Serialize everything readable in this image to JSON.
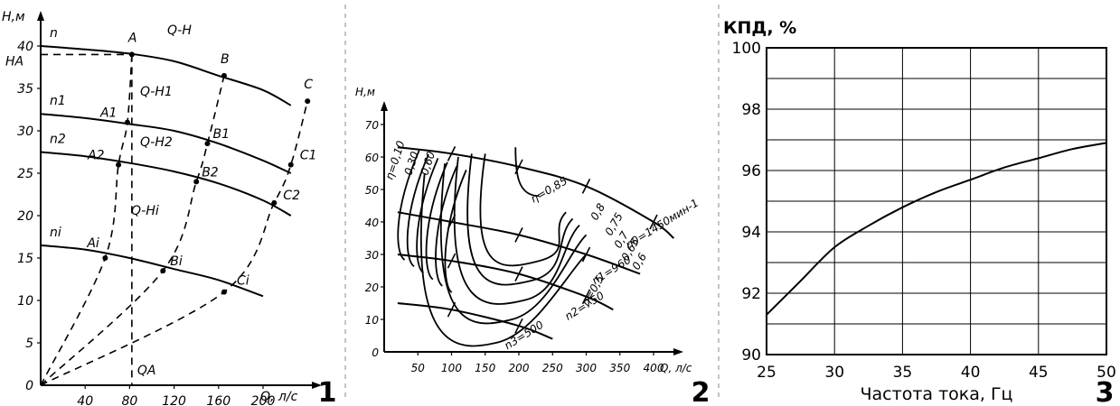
{
  "panel_numbers": [
    "1",
    "2",
    "3"
  ],
  "chart_data": [
    {
      "type": "line",
      "panel": "1",
      "ylabel": "H,м",
      "xlabel": "Q, л/с",
      "x_ticks": [
        "40",
        "80",
        "120",
        "160",
        "200"
      ],
      "y_ticks": [
        "0",
        "5",
        "10",
        "15",
        "20",
        "25",
        "30",
        "35",
        "40"
      ],
      "xlim": [
        0,
        245
      ],
      "ylim": [
        0,
        42
      ],
      "grid": false,
      "series": [
        {
          "name": "n",
          "curve_label": "Q-H",
          "style": "solid",
          "x": [
            0,
            40,
            80,
            120,
            160,
            200,
            225
          ],
          "y": [
            40.0,
            39.6,
            39.1,
            38.2,
            36.5,
            34.8,
            33.0
          ]
        },
        {
          "name": "n1",
          "curve_label": "Q-H1",
          "style": "solid",
          "x": [
            0,
            40,
            80,
            120,
            160,
            200,
            225
          ],
          "y": [
            32.0,
            31.5,
            30.8,
            30.0,
            28.5,
            26.5,
            25.0
          ]
        },
        {
          "name": "n2",
          "curve_label": "Q-H2",
          "style": "solid",
          "x": [
            0,
            40,
            80,
            120,
            160,
            200,
            225
          ],
          "y": [
            27.5,
            27.0,
            26.2,
            25.2,
            23.8,
            21.8,
            20.0
          ]
        },
        {
          "name": "ni",
          "curve_label": "Q-Hi",
          "style": "solid",
          "x": [
            0,
            40,
            80,
            120,
            160,
            200
          ],
          "y": [
            16.5,
            16.0,
            15.0,
            13.7,
            12.4,
            10.5
          ]
        }
      ],
      "similarity_parabolas": [
        {
          "points": [
            "A",
            "A1",
            "A2",
            "Ai"
          ],
          "x": [
            0,
            58,
            70,
            78,
            82
          ],
          "y": [
            0,
            15,
            26,
            31,
            39
          ]
        },
        {
          "points": [
            "B",
            "B1",
            "B2",
            "Bi"
          ],
          "x": [
            0,
            110,
            140,
            150,
            165
          ],
          "y": [
            0,
            13.5,
            24,
            28.5,
            36.5
          ]
        },
        {
          "points": [
            "C",
            "C1",
            "C2",
            "Ci"
          ],
          "x": [
            0,
            165,
            210,
            225,
            240
          ],
          "y": [
            0,
            11,
            21.5,
            26,
            33.5
          ]
        }
      ],
      "point_labels": [
        "A",
        "B",
        "C",
        "A1",
        "B1",
        "C1",
        "A2",
        "B2",
        "C2",
        "Ai",
        "Bi",
        "Ci"
      ],
      "annotations": [
        "HA",
        "QA"
      ],
      "operating_point": {
        "label": "A",
        "Q": 82,
        "H": 39
      }
    },
    {
      "type": "line",
      "panel": "2",
      "ylabel": "H,м",
      "xlabel": "Q, л/с",
      "x_ticks": [
        "50",
        "100",
        "150",
        "200",
        "250",
        "300",
        "350",
        "400"
      ],
      "y_ticks": [
        "0",
        "10",
        "20",
        "30",
        "40",
        "50",
        "60",
        "70"
      ],
      "xlim": [
        0,
        440
      ],
      "ylim": [
        0,
        75
      ],
      "grid": false,
      "speed_curves": [
        {
          "name": "n0=1450мин-1",
          "x": [
            20,
            100,
            200,
            300,
            400,
            430
          ],
          "y": [
            63,
            61,
            57,
            51,
            40,
            35
          ]
        },
        {
          "name": "n1=960",
          "x": [
            20,
            100,
            200,
            300,
            380
          ],
          "y": [
            43,
            40,
            36,
            30,
            24
          ]
        },
        {
          "name": "n2=750",
          "x": [
            20,
            100,
            200,
            300,
            340
          ],
          "y": [
            30,
            28,
            24,
            17,
            13
          ]
        },
        {
          "name": "n3=500",
          "x": [
            20,
            100,
            200,
            250
          ],
          "y": [
            15,
            13,
            8,
            4
          ]
        }
      ],
      "efficiency_labels": [
        "η=0,10",
        "0,30",
        "0,60",
        "η=0,85",
        "0,8",
        "0,75",
        "0,7",
        "0,65",
        "0,6",
        "η=0,5"
      ]
    },
    {
      "type": "line",
      "panel": "3",
      "title": "КПД, %",
      "xlabel": "Частота тока, Гц",
      "ylabel": "КПД, %",
      "x": [
        25,
        27.5,
        30,
        32.5,
        35,
        37.5,
        40,
        42.5,
        45,
        47.5,
        50
      ],
      "series": [
        {
          "values": [
            91.3,
            92.4,
            93.5,
            94.2,
            94.8,
            95.3,
            95.7,
            96.1,
            96.4,
            96.7,
            96.9
          ]
        }
      ],
      "x_ticks": [
        "25",
        "30",
        "35",
        "40",
        "45",
        "50"
      ],
      "y_ticks": [
        "90",
        "92",
        "94",
        "96",
        "98",
        "100"
      ],
      "xlim": [
        25,
        50
      ],
      "ylim": [
        90,
        100
      ],
      "grid": true
    }
  ]
}
